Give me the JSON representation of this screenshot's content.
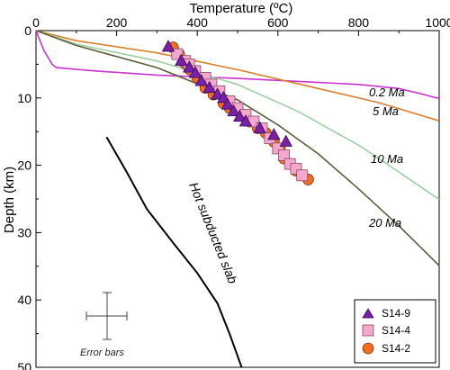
{
  "chart_data": {
    "type": "scatter",
    "xlabel": "Temperature (ºC)",
    "ylabel": "Depth (km)",
    "xlim": [
      0,
      1000
    ],
    "ylim": [
      0,
      50
    ],
    "y_inverted": true,
    "x_ticks": [
      "0",
      "200",
      "400",
      "600",
      "800",
      "1000"
    ],
    "y_ticks": [
      "0",
      "10",
      "20",
      "30",
      "40",
      "50"
    ],
    "x_axis_position": "top",
    "legend_position": "bottom-right",
    "curves": [
      {
        "name": "0.2 Ma",
        "color": "#cc33cc",
        "points": [
          [
            0,
            0
          ],
          [
            20,
            3
          ],
          [
            40,
            5
          ],
          [
            50,
            5.5
          ],
          [
            150,
            6
          ],
          [
            300,
            6.6
          ],
          [
            500,
            7.1
          ],
          [
            700,
            7.7
          ],
          [
            800,
            8
          ],
          [
            900,
            8.6
          ],
          [
            950,
            9.3
          ],
          [
            1000,
            10.1
          ]
        ]
      },
      {
        "name": "5 Ma",
        "color": "#d97f2b",
        "points": [
          [
            0,
            0
          ],
          [
            100,
            1.5
          ],
          [
            300,
            3.3
          ],
          [
            500,
            5.8
          ],
          [
            700,
            8.6
          ],
          [
            850,
            10.7
          ],
          [
            1000,
            13.4
          ]
        ]
      },
      {
        "name": "10 Ma",
        "color": "#9fcf9f",
        "points": [
          [
            0,
            0
          ],
          [
            100,
            2
          ],
          [
            300,
            4.5
          ],
          [
            500,
            8
          ],
          [
            650,
            12
          ],
          [
            800,
            17
          ],
          [
            900,
            21
          ],
          [
            1000,
            25.1
          ]
        ]
      },
      {
        "name": "20 Ma",
        "color": "#5c5c3a",
        "points": [
          [
            0,
            0
          ],
          [
            100,
            2.2
          ],
          [
            300,
            5.5
          ],
          [
            500,
            10.3
          ],
          [
            600,
            14
          ],
          [
            700,
            18.3
          ],
          [
            800,
            23.5
          ],
          [
            900,
            29
          ],
          [
            1000,
            34.9
          ]
        ]
      }
    ],
    "slab_curve": {
      "name": "Hot subducted slab",
      "color": "#000000",
      "points": [
        [
          175,
          15.8
        ],
        [
          225,
          21
        ],
        [
          275,
          26.5
        ],
        [
          340,
          31.5
        ],
        [
          400,
          36
        ],
        [
          450,
          40.5
        ],
        [
          480,
          45
        ],
        [
          510,
          50
        ]
      ]
    },
    "series": [
      {
        "name": "S14-9",
        "marker": "triangle",
        "color": "#7a1fa8",
        "points": [
          [
            328,
            2.4
          ],
          [
            360,
            4.5
          ],
          [
            380,
            5.5
          ],
          [
            395,
            6.3
          ],
          [
            410,
            7.5
          ],
          [
            430,
            8.5
          ],
          [
            450,
            9.5
          ],
          [
            465,
            10
          ],
          [
            475,
            11
          ],
          [
            490,
            12
          ],
          [
            505,
            12.8
          ],
          [
            520,
            13.5
          ],
          [
            555,
            14.5
          ],
          [
            590,
            15.5
          ],
          [
            620,
            16.5
          ]
        ]
      },
      {
        "name": "S14-4",
        "marker": "square",
        "color": "#f5a8cc",
        "points": [
          [
            350,
            3.5
          ],
          [
            370,
            4.5
          ],
          [
            380,
            5
          ],
          [
            395,
            6
          ],
          [
            420,
            7
          ],
          [
            435,
            8
          ],
          [
            455,
            9
          ],
          [
            480,
            10.5
          ],
          [
            500,
            11.5
          ],
          [
            520,
            12.5
          ],
          [
            540,
            13.5
          ],
          [
            560,
            14.5
          ],
          [
            580,
            16
          ],
          [
            600,
            17.5
          ],
          [
            615,
            18.5
          ],
          [
            630,
            19.8
          ],
          [
            645,
            20.5
          ],
          [
            660,
            21.5
          ]
        ]
      },
      {
        "name": "S14-2",
        "marker": "circle",
        "color": "#f26d21",
        "points": [
          [
            340,
            2.5
          ],
          [
            355,
            3.5
          ],
          [
            372,
            5
          ],
          [
            382,
            5.8
          ],
          [
            400,
            7
          ],
          [
            420,
            8.5
          ],
          [
            440,
            9.5
          ],
          [
            465,
            10.8
          ],
          [
            480,
            11.5
          ],
          [
            510,
            12.5
          ],
          [
            530,
            13.5
          ],
          [
            550,
            14.5
          ],
          [
            570,
            15.2
          ],
          [
            590,
            16.5
          ],
          [
            605,
            17.5
          ],
          [
            615,
            19
          ],
          [
            630,
            19.8
          ],
          [
            645,
            20.8
          ],
          [
            660,
            21.5
          ],
          [
            675,
            22.1
          ]
        ]
      }
    ]
  },
  "labels": {
    "xlabel": "Temperature (ºC)",
    "ylabel": "Depth (km)",
    "curve_0_2": "0.2 Ma",
    "curve_5": "5 Ma",
    "curve_10": "10 Ma",
    "curve_20": "20 Ma",
    "slab": "Hot subducted slab",
    "error_bars": "Error bars",
    "legend_s14_9": "S14-9",
    "legend_s14_4": "S14-4",
    "legend_s14_2": "S14-2"
  }
}
